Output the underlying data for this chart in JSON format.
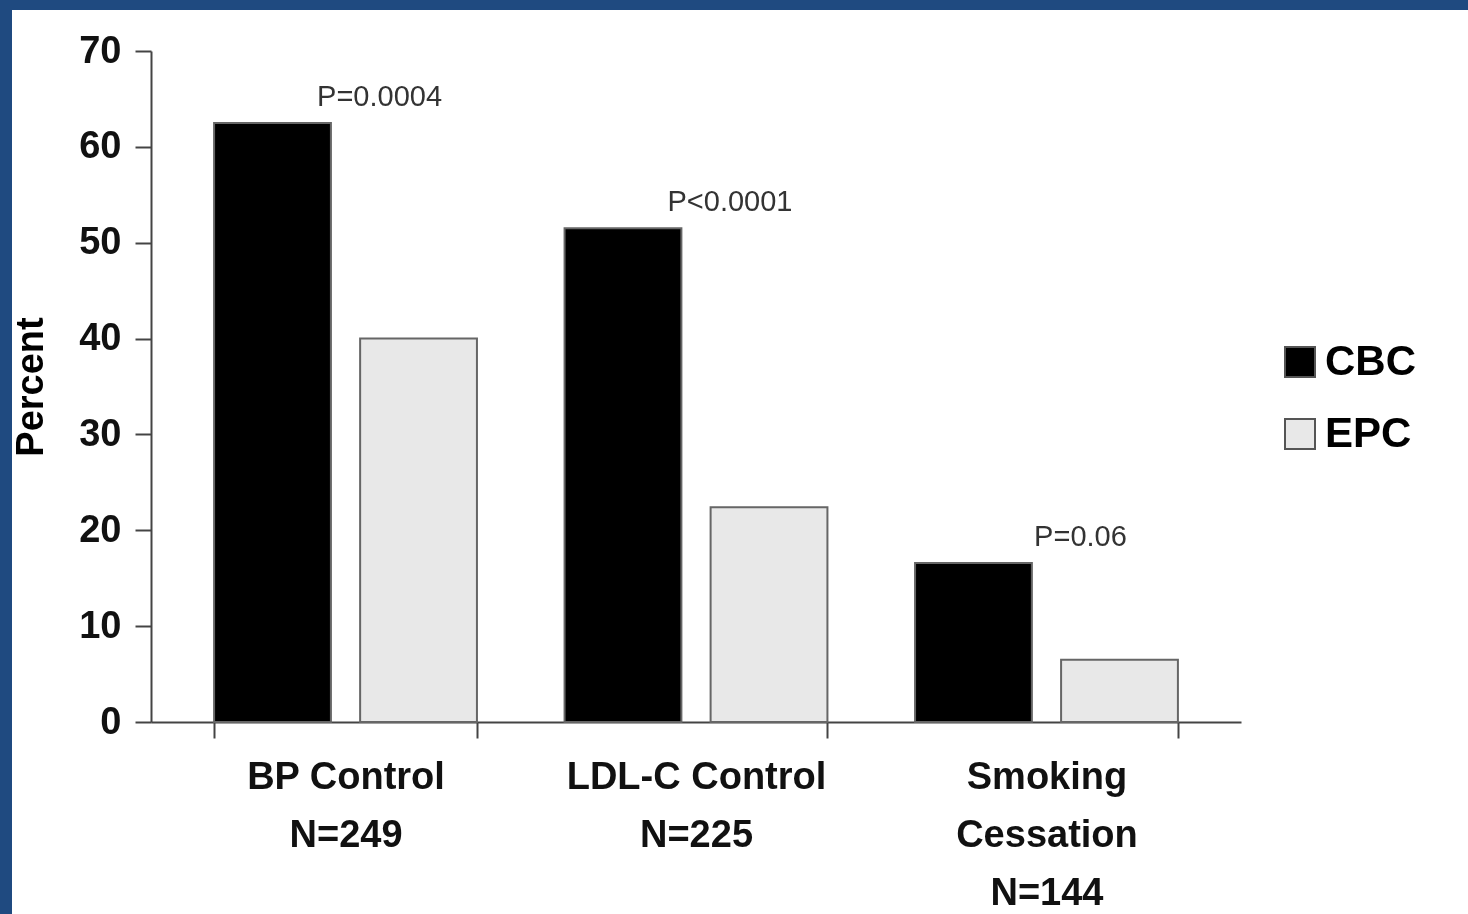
{
  "chart_data": {
    "type": "bar",
    "categories": [
      "BP Control\nN=249",
      "LDL-C Control\nN=225",
      "Smoking\nCessation\nN=144"
    ],
    "series": [
      {
        "name": "CBC",
        "color": "#000000",
        "values": [
          62.5,
          51.5,
          16.6
        ]
      },
      {
        "name": "EPC",
        "color": "#e8e8e8",
        "values": [
          40,
          22.4,
          6.5
        ]
      }
    ],
    "ylabel": "Percent",
    "ylim": [
      0,
      70
    ],
    "yticks": [
      0,
      10,
      20,
      30,
      40,
      50,
      60,
      70
    ],
    "annotations": [
      "P=0.0004",
      "P<0.0001",
      "P=0.06"
    ],
    "grid": false,
    "legend": "right"
  }
}
